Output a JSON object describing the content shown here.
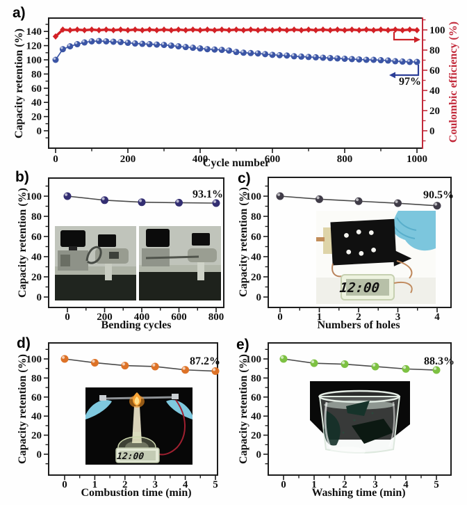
{
  "colors": {
    "frame": "#1c1c1c",
    "right_axis_red": "#c2293a",
    "retention_blue": "#3b55a5",
    "efficiency_red": "#d32126",
    "bending_navy": "#332e72",
    "holes_dark": "#403c48",
    "combustion_orange": "#dd7227",
    "washing_green": "#7dc142"
  },
  "insets": {
    "c_clock_display": "12:00",
    "d_clock_display": "12:00"
  },
  "chart_data": [
    {
      "id": "a",
      "type": "scatter",
      "panel_label": "a)",
      "xlabel": "Cycle number",
      "ylabel": "Capacity retention (%)",
      "ylabel_right": "Coulombic efficiency (%)",
      "xlim": [
        -19,
        1015
      ],
      "ylim": [
        -24.5,
        159
      ],
      "ylim_right": [
        -17.2,
        111.7
      ],
      "xticks": [
        0,
        200,
        400,
        600,
        800,
        1000
      ],
      "yticks": [
        0,
        20,
        40,
        60,
        80,
        100,
        120,
        140
      ],
      "yticks_right": [
        0,
        20,
        40,
        60,
        80,
        100
      ],
      "grid": false,
      "legend": "none",
      "series": [
        {
          "name": "Capacity retention",
          "axis": "left",
          "marker": "circle",
          "color": "#3b55a5",
          "line_color": "#3b55a5",
          "x": [
            0,
            20,
            40,
            60,
            80,
            100,
            120,
            140,
            160,
            180,
            200,
            220,
            240,
            260,
            280,
            300,
            320,
            340,
            360,
            380,
            400,
            420,
            440,
            460,
            480,
            500,
            520,
            540,
            560,
            580,
            600,
            620,
            640,
            660,
            680,
            700,
            720,
            740,
            760,
            780,
            800,
            820,
            840,
            860,
            880,
            900,
            920,
            940,
            960,
            980,
            1000
          ],
          "y": [
            100,
            115,
            119,
            122,
            124.5,
            126,
            126.5,
            126,
            125.5,
            125,
            124,
            123,
            122.5,
            122,
            121.5,
            121,
            120,
            119,
            118,
            117,
            116,
            115,
            114.5,
            114,
            113,
            111,
            110,
            109.5,
            109,
            108,
            107,
            106.5,
            106,
            105,
            104.5,
            104,
            103.5,
            103,
            102.5,
            102,
            101.5,
            101,
            100.5,
            100,
            100,
            99.5,
            99,
            98,
            97.5,
            97,
            97
          ]
        },
        {
          "name": "Coulombic efficiency",
          "axis": "right",
          "marker": "diamond",
          "color": "#d32126",
          "line_color": "#d32126",
          "x": [
            0,
            20,
            40,
            60,
            80,
            100,
            120,
            140,
            160,
            180,
            200,
            220,
            240,
            260,
            280,
            300,
            320,
            340,
            360,
            380,
            400,
            420,
            440,
            460,
            480,
            500,
            520,
            540,
            560,
            580,
            600,
            620,
            640,
            660,
            680,
            700,
            720,
            740,
            760,
            780,
            800,
            820,
            840,
            860,
            880,
            900,
            920,
            940,
            960,
            980,
            1000
          ],
          "y": [
            93.5,
            100.3,
            99.7,
            100.3,
            99.7,
            100.3,
            99.7,
            100.3,
            99.7,
            100.3,
            99.7,
            100.3,
            99.7,
            100.3,
            99.7,
            100.3,
            99.7,
            100.3,
            99.7,
            100.3,
            99.7,
            100.3,
            99.7,
            100.3,
            99.7,
            100.3,
            99.7,
            100.3,
            99.7,
            100.3,
            99.7,
            100.3,
            99.7,
            100.3,
            99.7,
            100.3,
            99.7,
            100.3,
            99.7,
            100.3,
            99.7,
            100.3,
            99.7,
            100.3,
            99.7,
            100.3,
            99.7,
            100.3,
            99.7,
            100.3,
            99.7
          ]
        }
      ],
      "annotation": {
        "text": "97%",
        "color": "#2c3e97"
      }
    },
    {
      "id": "b",
      "type": "scatter",
      "panel_label": "b)",
      "xlabel": "Bending cycles",
      "ylabel": "Capacity retention (%)",
      "xlim": [
        -105,
        886
      ],
      "ylim": [
        -10.3,
        118
      ],
      "xticks": [
        0,
        200,
        400,
        600,
        800
      ],
      "yticks": [
        0,
        20,
        40,
        60,
        80,
        100
      ],
      "grid": false,
      "legend": "none",
      "series": [
        {
          "name": "Capacity retention vs bending",
          "axis": "left",
          "marker": "circle",
          "color": "#332e72",
          "line_color": "#4a4a4a",
          "x": [
            0,
            200,
            400,
            600,
            800
          ],
          "y": [
            100,
            96,
            94,
            93.5,
            93.1
          ]
        }
      ],
      "annotation": {
        "text": "93.1%",
        "color": "#3a3a3a"
      }
    },
    {
      "id": "c",
      "type": "scatter",
      "panel_label": "c)",
      "xlabel": "Numbers of holes",
      "ylabel": "Capacity retention (%)",
      "xlim": [
        -0.3,
        4.35
      ],
      "ylim": [
        -10.3,
        118
      ],
      "xticks": [
        0,
        1,
        2,
        3,
        4
      ],
      "yticks": [
        0,
        20,
        40,
        60,
        80,
        100
      ],
      "grid": false,
      "legend": "none",
      "series": [
        {
          "name": "Capacity retention vs holes",
          "axis": "left",
          "marker": "circle",
          "color": "#403c48",
          "line_color": "#4a4a4a",
          "x": [
            0,
            1,
            2,
            3,
            4
          ],
          "y": [
            100,
            97,
            95,
            93,
            90.5
          ]
        }
      ],
      "annotation": {
        "text": "90.5%",
        "color": "#3a3a3a"
      }
    },
    {
      "id": "d",
      "type": "scatter",
      "panel_label": "d)",
      "xlabel": "Combustion  time (min)",
      "ylabel": "Capacity retention (%)",
      "xlim": [
        -0.53,
        5.07
      ],
      "ylim": [
        -21.9,
        116.8
      ],
      "xticks": [
        0,
        1,
        2,
        3,
        4,
        5
      ],
      "yticks": [
        0,
        20,
        40,
        60,
        80,
        100
      ],
      "grid": false,
      "legend": "none",
      "series": [
        {
          "name": "Capacity retention vs combustion time",
          "axis": "left",
          "marker": "circle",
          "color": "#dd7227",
          "line_color": "#4a4a4a",
          "x": [
            0,
            1,
            2,
            3,
            4,
            5
          ],
          "y": [
            100,
            96,
            93,
            92,
            88.5,
            87.2
          ]
        }
      ],
      "annotation": {
        "text": "87.2%",
        "color": "#3a3a3a"
      }
    },
    {
      "id": "e",
      "type": "scatter",
      "panel_label": "e)",
      "xlabel": "Washing  time (min)",
      "ylabel": "Capacity retention (%)",
      "xlim": [
        -0.5,
        5.48
      ],
      "ylim": [
        -21.9,
        116.8
      ],
      "xticks": [
        0,
        1,
        2,
        3,
        4,
        5
      ],
      "yticks": [
        0,
        20,
        40,
        60,
        80,
        100
      ],
      "grid": false,
      "legend": "none",
      "series": [
        {
          "name": "Capacity retention vs washing time",
          "axis": "left",
          "marker": "circle",
          "color": "#7dc142",
          "line_color": "#4a4a4a",
          "x": [
            0,
            1,
            2,
            3,
            4,
            5
          ],
          "y": [
            100,
            95.5,
            94.5,
            92,
            89.5,
            88.3
          ]
        }
      ],
      "annotation": {
        "text": "88.3%",
        "color": "#3a3a3a"
      }
    }
  ]
}
